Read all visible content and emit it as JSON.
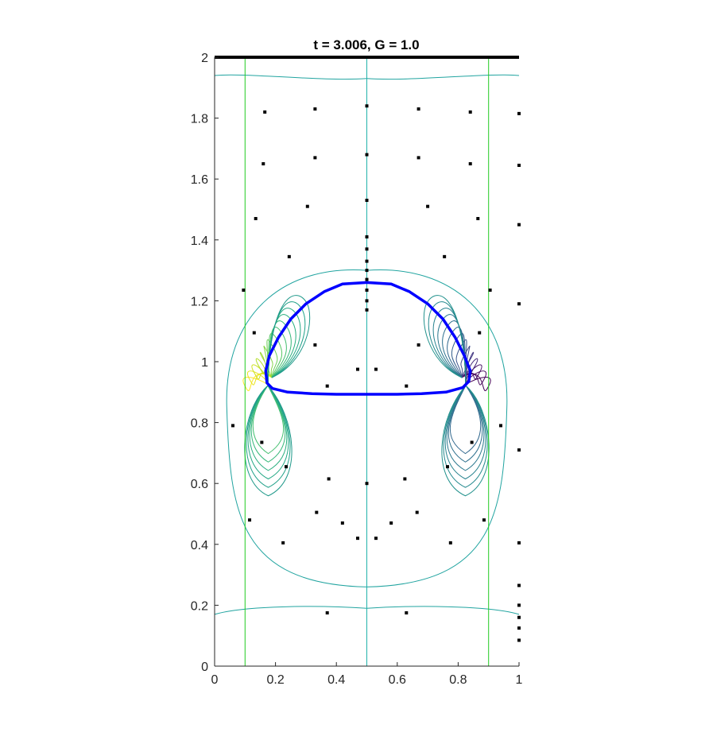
{
  "chart_data": {
    "type": "contour",
    "title": "t = 3.006, G = 1.0",
    "xlabel": "",
    "ylabel": "",
    "xlim": [
      0,
      1
    ],
    "ylim": [
      0,
      2
    ],
    "x_ticks": [
      "0",
      "0.2",
      "0.4",
      "0.6",
      "0.8",
      "1"
    ],
    "y_ticks": [
      "0",
      "0.2",
      "0.4",
      "0.6",
      "0.8",
      "1",
      "1.2",
      "1.4",
      "1.6",
      "1.8",
      "2"
    ],
    "grid": false,
    "top_wall": {
      "y": 2.0,
      "color": "#000000"
    },
    "vertical_lines": [
      {
        "x": 0.1,
        "color": "#22cc22"
      },
      {
        "x": 0.5,
        "color": "#20b2aa"
      },
      {
        "x": 0.9,
        "color": "#22cc22"
      }
    ],
    "bubble": {
      "color": "#0000ff",
      "outline": [
        [
          0.5,
          1.26
        ],
        [
          0.58,
          1.255
        ],
        [
          0.64,
          1.23
        ],
        [
          0.7,
          1.19
        ],
        [
          0.75,
          1.14
        ],
        [
          0.79,
          1.08
        ],
        [
          0.82,
          1.02
        ],
        [
          0.84,
          0.97
        ],
        [
          0.835,
          0.935
        ],
        [
          0.815,
          0.915
        ],
        [
          0.76,
          0.9
        ],
        [
          0.68,
          0.895
        ],
        [
          0.6,
          0.893
        ],
        [
          0.5,
          0.893
        ],
        [
          0.4,
          0.893
        ],
        [
          0.32,
          0.895
        ],
        [
          0.24,
          0.9
        ],
        [
          0.19,
          0.912
        ],
        [
          0.172,
          0.93
        ],
        [
          0.168,
          0.97
        ],
        [
          0.18,
          1.02
        ],
        [
          0.21,
          1.08
        ],
        [
          0.25,
          1.14
        ],
        [
          0.3,
          1.19
        ],
        [
          0.36,
          1.23
        ],
        [
          0.42,
          1.255
        ],
        [
          0.5,
          1.26
        ]
      ]
    },
    "markers": [
      [
        0.165,
        1.82
      ],
      [
        0.33,
        1.83
      ],
      [
        0.5,
        1.84
      ],
      [
        0.67,
        1.83
      ],
      [
        0.84,
        1.82
      ],
      [
        1.0,
        1.815
      ],
      [
        0.16,
        1.65
      ],
      [
        0.33,
        1.67
      ],
      [
        0.5,
        1.68
      ],
      [
        0.67,
        1.67
      ],
      [
        0.84,
        1.65
      ],
      [
        1.0,
        1.645
      ],
      [
        0.135,
        1.47
      ],
      [
        0.305,
        1.51
      ],
      [
        0.5,
        1.53
      ],
      [
        0.7,
        1.51
      ],
      [
        0.865,
        1.47
      ],
      [
        1.0,
        1.45
      ],
      [
        0.245,
        1.345
      ],
      [
        0.755,
        1.345
      ],
      [
        0.5,
        1.41
      ],
      [
        0.5,
        1.37
      ],
      [
        0.5,
        1.33
      ],
      [
        0.5,
        1.3
      ],
      [
        0.5,
        1.27
      ],
      [
        0.5,
        1.235
      ],
      [
        0.5,
        1.2
      ],
      [
        0.5,
        1.17
      ],
      [
        0.095,
        1.235
      ],
      [
        0.905,
        1.235
      ],
      [
        1.0,
        1.19
      ],
      [
        0.13,
        1.095
      ],
      [
        0.33,
        1.055
      ],
      [
        0.67,
        1.055
      ],
      [
        0.87,
        1.095
      ],
      [
        0.47,
        0.975
      ],
      [
        0.53,
        0.975
      ],
      [
        0.37,
        0.92
      ],
      [
        0.63,
        0.92
      ],
      [
        0.06,
        0.79
      ],
      [
        0.94,
        0.79
      ],
      [
        0.155,
        0.735
      ],
      [
        0.845,
        0.735
      ],
      [
        1.0,
        0.71
      ],
      [
        0.235,
        0.655
      ],
      [
        0.765,
        0.655
      ],
      [
        0.375,
        0.615
      ],
      [
        0.625,
        0.615
      ],
      [
        0.5,
        0.6
      ],
      [
        0.335,
        0.505
      ],
      [
        0.665,
        0.505
      ],
      [
        0.115,
        0.48
      ],
      [
        0.885,
        0.48
      ],
      [
        0.42,
        0.47
      ],
      [
        0.58,
        0.47
      ],
      [
        0.47,
        0.42
      ],
      [
        0.53,
        0.42
      ],
      [
        0.225,
        0.405
      ],
      [
        0.775,
        0.405
      ],
      [
        1.0,
        0.405
      ],
      [
        1.0,
        0.265
      ],
      [
        1.0,
        0.2
      ],
      [
        1.0,
        0.16
      ],
      [
        1.0,
        0.125
      ],
      [
        1.0,
        0.085
      ],
      [
        0.37,
        0.175
      ],
      [
        0.63,
        0.175
      ]
    ]
  }
}
